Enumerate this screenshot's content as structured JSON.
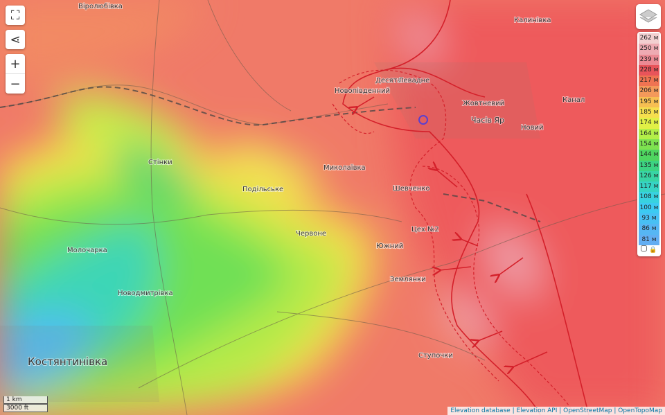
{
  "places": [
    "Віролюбівка",
    "Калинівка",
    "Десята",
    "Левадне",
    "Новопівденний",
    "Жовтневий",
    "Часів Яр",
    "Канал",
    "Новий",
    "Миколаївка",
    "Стінки",
    "Подільське",
    "Шевченко",
    "Цех №2",
    "Червоне",
    "Южний",
    "Молочарка",
    "Землянки",
    "Новодмитрівка",
    "Ступочки",
    "Костянтинівка"
  ],
  "legend": {
    "entries": [
      {
        "label": "262 м",
        "color": "#f2cfd0"
      },
      {
        "label": "250 м",
        "color": "#eeaab2"
      },
      {
        "label": "239 м",
        "color": "#ec8a94"
      },
      {
        "label": "228 м",
        "color": "#e8545a"
      },
      {
        "label": "217 м",
        "color": "#ef7352"
      },
      {
        "label": "206 м",
        "color": "#f4995a"
      },
      {
        "label": "195 м",
        "color": "#f7bf52"
      },
      {
        "label": "185 м",
        "color": "#f6df4e"
      },
      {
        "label": "174 м",
        "color": "#e1f046"
      },
      {
        "label": "164 м",
        "color": "#b3ee48"
      },
      {
        "label": "154 м",
        "color": "#7ee250"
      },
      {
        "label": "144 м",
        "color": "#4fd560"
      },
      {
        "label": "135 м",
        "color": "#3cd382"
      },
      {
        "label": "126 м",
        "color": "#38d4a4"
      },
      {
        "label": "117 м",
        "color": "#36d4c4"
      },
      {
        "label": "108 м",
        "color": "#38d2e0"
      },
      {
        "label": "100 м",
        "color": "#3ccaf2"
      },
      {
        "label": "93 м",
        "color": "#48c0f4"
      },
      {
        "label": "86 м",
        "color": "#56b6f4"
      },
      {
        "label": "81 м",
        "color": "#62aef2"
      }
    ]
  },
  "scale": [
    "1 km",
    "3000 ft"
  ],
  "attribution": "Elevation database | Elevation API | OpenStreetMap | OpenTopoMap"
}
